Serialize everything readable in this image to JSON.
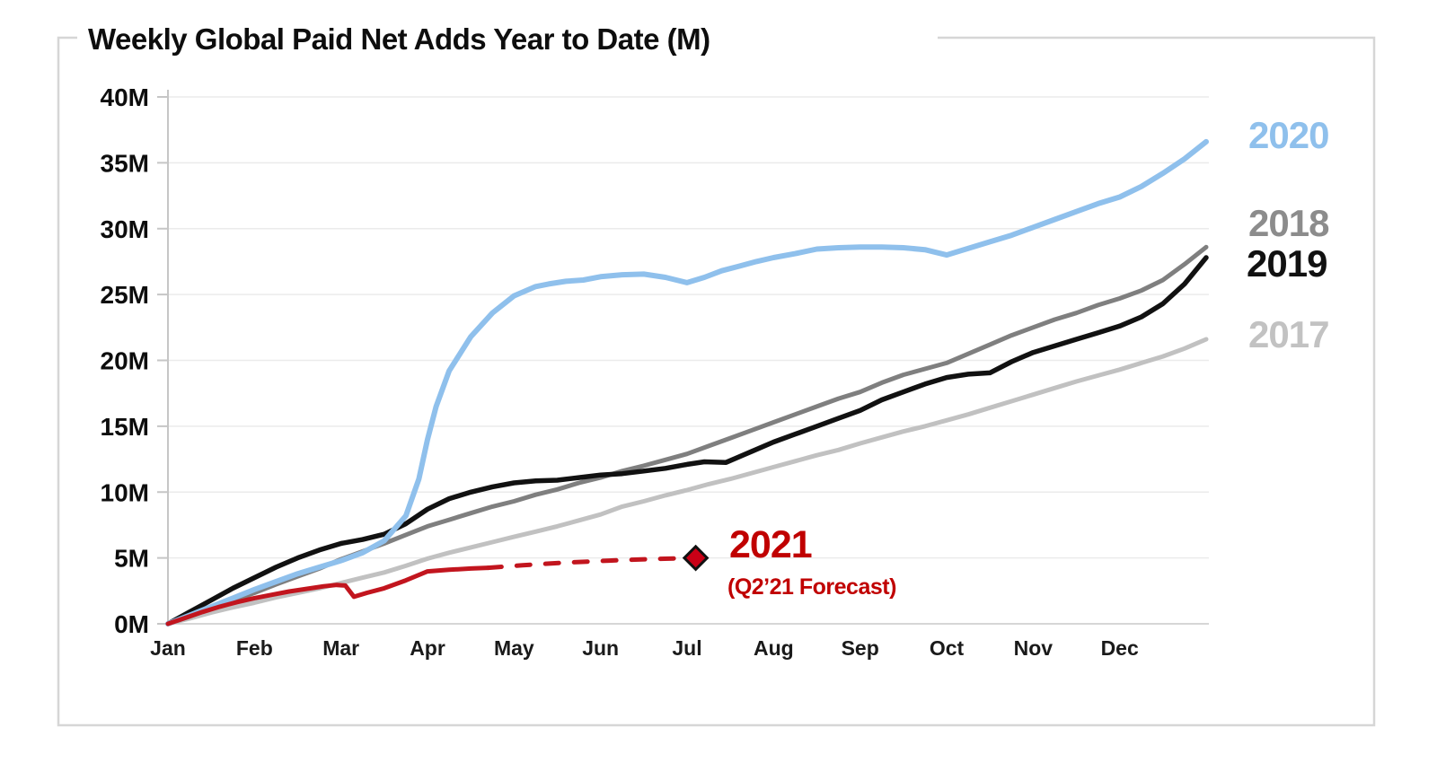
{
  "chart_data": {
    "type": "line",
    "title": "Weekly Global Paid Net Adds Year to Date (M)",
    "xlabel": "",
    "ylabel": "",
    "ylim": [
      0,
      40
    ],
    "xlim_months": [
      0,
      12
    ],
    "grid": "horizontal-only",
    "legend_position": "right-of-plot",
    "y_ticks": [
      {
        "value": 0,
        "label": "0M"
      },
      {
        "value": 5,
        "label": "5M"
      },
      {
        "value": 10,
        "label": "10M"
      },
      {
        "value": 15,
        "label": "15M"
      },
      {
        "value": 20,
        "label": "20M"
      },
      {
        "value": 25,
        "label": "25M"
      },
      {
        "value": 30,
        "label": "30M"
      },
      {
        "value": 35,
        "label": "35M"
      },
      {
        "value": 40,
        "label": "40M"
      }
    ],
    "x_ticks": [
      {
        "month": 0,
        "label": "Jan"
      },
      {
        "month": 1,
        "label": "Feb"
      },
      {
        "month": 2,
        "label": "Mar"
      },
      {
        "month": 3,
        "label": "Apr"
      },
      {
        "month": 4,
        "label": "May"
      },
      {
        "month": 5,
        "label": "Jun"
      },
      {
        "month": 6,
        "label": "Jul"
      },
      {
        "month": 7,
        "label": "Aug"
      },
      {
        "month": 8,
        "label": "Sep"
      },
      {
        "month": 9,
        "label": "Oct"
      },
      {
        "month": 10,
        "label": "Nov"
      },
      {
        "month": 11,
        "label": "Dec"
      }
    ],
    "series": [
      {
        "name": "2017",
        "color": "#C1C1C1",
        "width": 5,
        "style": "solid",
        "points": [
          [
            0,
            0
          ],
          [
            0.25,
            0.4
          ],
          [
            0.5,
            0.85
          ],
          [
            0.75,
            1.25
          ],
          [
            1,
            1.6
          ],
          [
            1.25,
            2.0
          ],
          [
            1.5,
            2.35
          ],
          [
            1.75,
            2.7
          ],
          [
            2,
            3.1
          ],
          [
            2.25,
            3.5
          ],
          [
            2.5,
            3.9
          ],
          [
            2.75,
            4.4
          ],
          [
            3,
            4.95
          ],
          [
            3.25,
            5.4
          ],
          [
            3.5,
            5.8
          ],
          [
            3.75,
            6.2
          ],
          [
            4,
            6.6
          ],
          [
            4.25,
            7.0
          ],
          [
            4.5,
            7.4
          ],
          [
            4.75,
            7.85
          ],
          [
            5,
            8.3
          ],
          [
            5.25,
            8.9
          ],
          [
            5.5,
            9.3
          ],
          [
            5.75,
            9.75
          ],
          [
            6,
            10.15
          ],
          [
            6.25,
            10.6
          ],
          [
            6.5,
            11.0
          ],
          [
            6.75,
            11.45
          ],
          [
            7,
            11.9
          ],
          [
            7.25,
            12.35
          ],
          [
            7.5,
            12.8
          ],
          [
            7.75,
            13.2
          ],
          [
            8,
            13.7
          ],
          [
            8.25,
            14.15
          ],
          [
            8.5,
            14.6
          ],
          [
            8.75,
            15.0
          ],
          [
            9,
            15.45
          ],
          [
            9.25,
            15.9
          ],
          [
            9.5,
            16.4
          ],
          [
            9.75,
            16.9
          ],
          [
            10,
            17.4
          ],
          [
            10.25,
            17.9
          ],
          [
            10.5,
            18.4
          ],
          [
            10.75,
            18.85
          ],
          [
            11,
            19.3
          ],
          [
            11.25,
            19.8
          ],
          [
            11.5,
            20.3
          ],
          [
            11.75,
            20.9
          ],
          [
            12,
            21.6
          ]
        ]
      },
      {
        "name": "2018",
        "color": "#7F7F7F",
        "width": 5,
        "style": "solid",
        "points": [
          [
            0,
            0
          ],
          [
            0.25,
            0.55
          ],
          [
            0.5,
            1.15
          ],
          [
            0.75,
            1.75
          ],
          [
            1,
            2.35
          ],
          [
            1.25,
            3.0
          ],
          [
            1.5,
            3.6
          ],
          [
            1.75,
            4.2
          ],
          [
            2,
            4.9
          ],
          [
            2.25,
            5.5
          ],
          [
            2.5,
            6.1
          ],
          [
            2.75,
            6.75
          ],
          [
            3,
            7.4
          ],
          [
            3.25,
            7.9
          ],
          [
            3.5,
            8.4
          ],
          [
            3.75,
            8.9
          ],
          [
            4,
            9.3
          ],
          [
            4.25,
            9.8
          ],
          [
            4.5,
            10.2
          ],
          [
            4.75,
            10.7
          ],
          [
            5,
            11.1
          ],
          [
            5.25,
            11.6
          ],
          [
            5.5,
            12.0
          ],
          [
            5.75,
            12.45
          ],
          [
            6,
            12.9
          ],
          [
            6.25,
            13.5
          ],
          [
            6.5,
            14.1
          ],
          [
            6.75,
            14.7
          ],
          [
            7,
            15.3
          ],
          [
            7.25,
            15.9
          ],
          [
            7.5,
            16.5
          ],
          [
            7.75,
            17.1
          ],
          [
            8,
            17.6
          ],
          [
            8.25,
            18.3
          ],
          [
            8.5,
            18.9
          ],
          [
            8.75,
            19.35
          ],
          [
            9,
            19.8
          ],
          [
            9.25,
            20.5
          ],
          [
            9.5,
            21.2
          ],
          [
            9.75,
            21.9
          ],
          [
            10,
            22.5
          ],
          [
            10.25,
            23.1
          ],
          [
            10.5,
            23.6
          ],
          [
            10.75,
            24.2
          ],
          [
            11,
            24.7
          ],
          [
            11.25,
            25.3
          ],
          [
            11.5,
            26.1
          ],
          [
            11.75,
            27.3
          ],
          [
            12,
            28.6
          ]
        ]
      },
      {
        "name": "2019",
        "color": "#111111",
        "width": 5.5,
        "style": "solid",
        "points": [
          [
            0,
            0
          ],
          [
            0.25,
            0.9
          ],
          [
            0.5,
            1.8
          ],
          [
            0.75,
            2.7
          ],
          [
            1,
            3.5
          ],
          [
            1.25,
            4.3
          ],
          [
            1.5,
            5.0
          ],
          [
            1.75,
            5.6
          ],
          [
            2,
            6.1
          ],
          [
            2.25,
            6.4
          ],
          [
            2.5,
            6.8
          ],
          [
            2.75,
            7.6
          ],
          [
            3,
            8.7
          ],
          [
            3.25,
            9.5
          ],
          [
            3.5,
            10.0
          ],
          [
            3.75,
            10.4
          ],
          [
            4,
            10.7
          ],
          [
            4.25,
            10.85
          ],
          [
            4.5,
            10.9
          ],
          [
            4.75,
            11.1
          ],
          [
            5,
            11.3
          ],
          [
            5.25,
            11.4
          ],
          [
            5.5,
            11.6
          ],
          [
            5.75,
            11.8
          ],
          [
            6,
            12.1
          ],
          [
            6.2,
            12.3
          ],
          [
            6.45,
            12.25
          ],
          [
            6.75,
            13.1
          ],
          [
            7,
            13.8
          ],
          [
            7.25,
            14.4
          ],
          [
            7.5,
            15.0
          ],
          [
            7.75,
            15.6
          ],
          [
            8,
            16.2
          ],
          [
            8.25,
            17.0
          ],
          [
            8.5,
            17.6
          ],
          [
            8.75,
            18.2
          ],
          [
            9,
            18.7
          ],
          [
            9.25,
            18.95
          ],
          [
            9.5,
            19.05
          ],
          [
            9.75,
            19.9
          ],
          [
            10,
            20.6
          ],
          [
            10.25,
            21.1
          ],
          [
            10.5,
            21.6
          ],
          [
            10.75,
            22.1
          ],
          [
            11,
            22.6
          ],
          [
            11.25,
            23.3
          ],
          [
            11.5,
            24.3
          ],
          [
            11.75,
            25.8
          ],
          [
            12,
            27.8
          ]
        ]
      },
      {
        "name": "2020",
        "color": "#8FC0EC",
        "width": 6,
        "style": "solid",
        "points": [
          [
            0,
            0
          ],
          [
            0.25,
            0.65
          ],
          [
            0.5,
            1.3
          ],
          [
            0.75,
            1.95
          ],
          [
            1,
            2.6
          ],
          [
            1.25,
            3.2
          ],
          [
            1.5,
            3.8
          ],
          [
            1.75,
            4.3
          ],
          [
            2,
            4.8
          ],
          [
            2.25,
            5.4
          ],
          [
            2.5,
            6.3
          ],
          [
            2.75,
            8.2
          ],
          [
            2.9,
            11.0
          ],
          [
            3,
            14.0
          ],
          [
            3.1,
            16.5
          ],
          [
            3.25,
            19.2
          ],
          [
            3.5,
            21.8
          ],
          [
            3.75,
            23.6
          ],
          [
            4,
            24.9
          ],
          [
            4.25,
            25.6
          ],
          [
            4.4,
            25.8
          ],
          [
            4.6,
            26.0
          ],
          [
            4.8,
            26.1
          ],
          [
            5,
            26.35
          ],
          [
            5.25,
            26.5
          ],
          [
            5.5,
            26.55
          ],
          [
            5.75,
            26.3
          ],
          [
            6,
            25.9
          ],
          [
            6.2,
            26.3
          ],
          [
            6.4,
            26.8
          ],
          [
            6.6,
            27.15
          ],
          [
            6.8,
            27.5
          ],
          [
            7,
            27.8
          ],
          [
            7.25,
            28.1
          ],
          [
            7.5,
            28.45
          ],
          [
            7.75,
            28.55
          ],
          [
            8,
            28.6
          ],
          [
            8.25,
            28.6
          ],
          [
            8.5,
            28.55
          ],
          [
            8.75,
            28.4
          ],
          [
            9,
            28.0
          ],
          [
            9.25,
            28.5
          ],
          [
            9.5,
            29.0
          ],
          [
            9.75,
            29.5
          ],
          [
            10,
            30.1
          ],
          [
            10.25,
            30.7
          ],
          [
            10.5,
            31.3
          ],
          [
            10.75,
            31.9
          ],
          [
            11,
            32.4
          ],
          [
            11.25,
            33.2
          ],
          [
            11.5,
            34.2
          ],
          [
            11.75,
            35.3
          ],
          [
            12,
            36.6
          ]
        ]
      },
      {
        "name": "2021-actual",
        "color": "#C2151E",
        "width": 5,
        "style": "solid",
        "points": [
          [
            0,
            0
          ],
          [
            0.2,
            0.45
          ],
          [
            0.4,
            0.9
          ],
          [
            0.6,
            1.3
          ],
          [
            0.8,
            1.65
          ],
          [
            1,
            1.95
          ],
          [
            1.2,
            2.2
          ],
          [
            1.4,
            2.45
          ],
          [
            1.6,
            2.65
          ],
          [
            1.8,
            2.85
          ],
          [
            1.95,
            2.95
          ],
          [
            2.05,
            2.9
          ],
          [
            2.15,
            2.05
          ],
          [
            2.3,
            2.35
          ],
          [
            2.5,
            2.7
          ],
          [
            2.75,
            3.3
          ],
          [
            3,
            3.98
          ],
          [
            3.25,
            4.1
          ],
          [
            3.5,
            4.2
          ],
          [
            3.7,
            4.25
          ]
        ]
      },
      {
        "name": "2021-forecast",
        "color": "#C2151E",
        "width": 5,
        "style": "dashed",
        "points": [
          [
            3.7,
            4.25
          ],
          [
            4.1,
            4.45
          ],
          [
            4.6,
            4.65
          ],
          [
            5.1,
            4.8
          ],
          [
            5.6,
            4.92
          ],
          [
            6.1,
            5.0
          ]
        ]
      }
    ],
    "forecast_marker": {
      "x": 6.1,
      "y": 5.0,
      "shape": "diamond",
      "fill": "#C90016",
      "stroke": "#111111"
    },
    "legend": [
      {
        "label": "2020",
        "color": "#8FC0EC"
      },
      {
        "label": "2018",
        "color": "#8C8C8C"
      },
      {
        "label": "2019",
        "color": "#111111"
      },
      {
        "label": "2017",
        "color": "#C2C2C2"
      }
    ],
    "annotation": {
      "label": "2021",
      "sublabel": "(Q2’21 Forecast)",
      "color": "#C00000"
    }
  }
}
